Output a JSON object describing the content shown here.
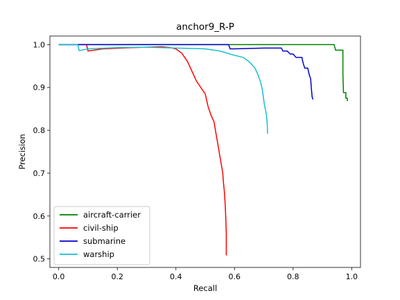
{
  "chart_data": {
    "type": "line",
    "title": "anchor9_R-P",
    "xlabel": "Recall",
    "ylabel": "Precision",
    "xlim": [
      -0.03,
      1.03
    ],
    "ylim": [
      0.48,
      1.02
    ],
    "xticks": [
      "0.0",
      "0.2",
      "0.4",
      "0.6",
      "0.8",
      "1.0"
    ],
    "yticks": [
      "0.5",
      "0.6",
      "0.7",
      "0.8",
      "0.9",
      "1.0"
    ],
    "xtick_values": [
      0.0,
      0.2,
      0.4,
      0.6,
      0.8,
      1.0
    ],
    "ytick_values": [
      0.5,
      0.6,
      0.7,
      0.8,
      0.9,
      1.0
    ],
    "grid": false,
    "legend_position": "lower-left",
    "series": [
      {
        "name": "aircraft-carrier",
        "color": "#008000",
        "x": [
          0.0,
          0.5,
          0.94,
          0.945,
          0.97,
          0.97,
          0.972,
          0.98,
          0.98,
          0.985,
          0.985
        ],
        "y": [
          1.0,
          1.0,
          1.0,
          0.987,
          0.987,
          0.93,
          0.888,
          0.888,
          0.875,
          0.875,
          0.868
        ]
      },
      {
        "name": "civil-ship",
        "color": "#ff0000",
        "x": [
          0.0,
          0.095,
          0.1,
          0.15,
          0.25,
          0.35,
          0.38,
          0.4,
          0.42,
          0.43,
          0.44,
          0.45,
          0.46,
          0.47,
          0.48,
          0.49,
          0.5,
          0.505,
          0.51,
          0.515,
          0.52,
          0.53,
          0.535,
          0.54,
          0.545,
          0.55,
          0.555,
          0.56,
          0.562,
          0.565,
          0.568,
          0.57,
          0.572,
          0.572
        ],
        "y": [
          1.0,
          1.0,
          0.985,
          0.99,
          0.993,
          0.995,
          0.993,
          0.99,
          0.98,
          0.97,
          0.96,
          0.945,
          0.93,
          0.915,
          0.905,
          0.895,
          0.885,
          0.87,
          0.855,
          0.845,
          0.835,
          0.82,
          0.8,
          0.78,
          0.76,
          0.74,
          0.72,
          0.7,
          0.68,
          0.66,
          0.63,
          0.6,
          0.56,
          0.508
        ]
      },
      {
        "name": "submarine",
        "color": "#0000cc",
        "x": [
          0.0,
          0.3,
          0.58,
          0.585,
          0.6,
          0.7,
          0.76,
          0.765,
          0.78,
          0.79,
          0.8,
          0.81,
          0.83,
          0.835,
          0.84,
          0.85,
          0.855,
          0.86,
          0.862,
          0.865,
          0.868
        ],
        "y": [
          1.0,
          1.0,
          1.0,
          0.99,
          0.99,
          0.992,
          0.992,
          0.985,
          0.985,
          0.978,
          0.978,
          0.97,
          0.97,
          0.955,
          0.945,
          0.945,
          0.93,
          0.92,
          0.9,
          0.878,
          0.872
        ]
      },
      {
        "name": "warship",
        "color": "#17becf",
        "x": [
          0.0,
          0.065,
          0.07,
          0.1,
          0.2,
          0.3,
          0.4,
          0.5,
          0.55,
          0.6,
          0.63,
          0.65,
          0.67,
          0.68,
          0.69,
          0.695,
          0.7,
          0.702,
          0.705,
          0.708,
          0.71,
          0.712,
          0.713
        ],
        "y": [
          1.0,
          1.0,
          0.986,
          0.99,
          0.993,
          0.994,
          0.992,
          0.99,
          0.985,
          0.975,
          0.97,
          0.96,
          0.945,
          0.93,
          0.91,
          0.895,
          0.87,
          0.86,
          0.85,
          0.84,
          0.83,
          0.81,
          0.792
        ]
      }
    ]
  }
}
